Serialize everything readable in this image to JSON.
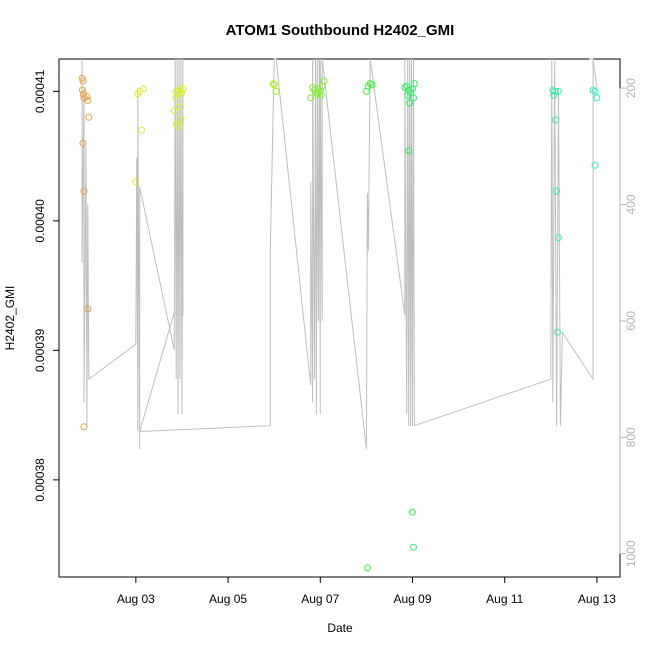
{
  "chart_data": {
    "type": "scatter",
    "title": "ATOM1 Southbound H2402_GMI",
    "xlabel": "Date",
    "ylabel": "H2402_GMI",
    "x_domain": [
      "2016-08-01T08:00",
      "2016-08-13T12:00"
    ],
    "y_domain": [
      0.0003725,
      0.0004125
    ],
    "y2_domain": [
      1040,
      150
    ],
    "x_ticks": [
      {
        "date": "2016-08-03",
        "label": "Aug 03"
      },
      {
        "date": "2016-08-05",
        "label": "Aug 05"
      },
      {
        "date": "2016-08-07",
        "label": "Aug 07"
      },
      {
        "date": "2016-08-09",
        "label": "Aug 09"
      },
      {
        "date": "2016-08-11",
        "label": "Aug 11"
      },
      {
        "date": "2016-08-13",
        "label": "Aug 13"
      }
    ],
    "y_ticks": [
      {
        "value": 0.00038,
        "label": "0.00038"
      },
      {
        "value": 0.00039,
        "label": "0.00039"
      },
      {
        "value": 0.0004,
        "label": "0.00040"
      },
      {
        "value": 0.00041,
        "label": "0.00041"
      }
    ],
    "y2_ticks": [
      {
        "value": 200,
        "label": "200"
      },
      {
        "value": 400,
        "label": "400"
      },
      {
        "value": 600,
        "label": "600"
      },
      {
        "value": 800,
        "label": "800"
      },
      {
        "value": 1000,
        "label": "1000"
      }
    ],
    "points": [
      {
        "x": "2016-08-01T20:00",
        "y": 0.000411,
        "color": "#e6a040"
      },
      {
        "x": "2016-08-01T20:30",
        "y": 0.0004108,
        "color": "#e6a040"
      },
      {
        "x": "2016-08-01T20:15",
        "y": 0.0004101,
        "color": "#e6a040"
      },
      {
        "x": "2016-08-01T20:45",
        "y": 0.0004098,
        "color": "#e6a040"
      },
      {
        "x": "2016-08-01T21:00",
        "y": 0.0004095,
        "color": "#e6a040"
      },
      {
        "x": "2016-08-01T23:00",
        "y": 0.0004093,
        "color": "#e6a040"
      },
      {
        "x": "2016-08-01T22:30",
        "y": 0.0004096,
        "color": "#e6a040"
      },
      {
        "x": "2016-08-01T23:30",
        "y": 0.000408,
        "color": "#e6a040"
      },
      {
        "x": "2016-08-01T20:30",
        "y": 0.000406,
        "color": "#e6a040"
      },
      {
        "x": "2016-08-01T21:00",
        "y": 0.0004023,
        "color": "#e6a040"
      },
      {
        "x": "2016-08-01T23:00",
        "y": 0.0003932,
        "color": "#e6a040"
      },
      {
        "x": "2016-08-01T21:00",
        "y": 0.0003841,
        "color": "#e6a040"
      },
      {
        "x": "2016-08-03T02:00",
        "y": 0.00041,
        "color": "#e6e633"
      },
      {
        "x": "2016-08-03T04:00",
        "y": 0.0004102,
        "color": "#e6e633"
      },
      {
        "x": "2016-08-03T01:00",
        "y": 0.0004098,
        "color": "#e6e633"
      },
      {
        "x": "2016-08-03T03:00",
        "y": 0.000407,
        "color": "#e6e633"
      },
      {
        "x": "2016-08-03T00:00",
        "y": 0.000403,
        "color": "#e6e633"
      },
      {
        "x": "2016-08-03T21:00",
        "y": 0.00041,
        "color": "#d8f020"
      },
      {
        "x": "2016-08-03T22:00",
        "y": 0.0004098,
        "color": "#d8f020"
      },
      {
        "x": "2016-08-03T23:00",
        "y": 0.0004101,
        "color": "#d8f020"
      },
      {
        "x": "2016-08-04T00:00",
        "y": 0.0004099,
        "color": "#d8f020"
      },
      {
        "x": "2016-08-03T21:00",
        "y": 0.0004095,
        "color": "#d8f020"
      },
      {
        "x": "2016-08-03T22:30",
        "y": 0.0004088,
        "color": "#d8f020"
      },
      {
        "x": "2016-08-03T20:00",
        "y": 0.0004085,
        "color": "#d8f020"
      },
      {
        "x": "2016-08-03T23:30",
        "y": 0.0004078,
        "color": "#d8f020"
      },
      {
        "x": "2016-08-03T21:00",
        "y": 0.0004075,
        "color": "#d8f020"
      },
      {
        "x": "2016-08-03T22:00",
        "y": 0.0004073,
        "color": "#d8f020"
      },
      {
        "x": "2016-08-04T00:30",
        "y": 0.0004102,
        "color": "#d8f020"
      },
      {
        "x": "2016-08-05T23:30",
        "y": 0.0004106,
        "color": "#a6f020"
      },
      {
        "x": "2016-08-06T00:00",
        "y": 0.0004105,
        "color": "#a6f020"
      },
      {
        "x": "2016-08-06T01:00",
        "y": 0.00041,
        "color": "#a6f020"
      },
      {
        "x": "2016-08-06T20:00",
        "y": 0.0004103,
        "color": "#86f030"
      },
      {
        "x": "2016-08-06T21:00",
        "y": 0.0004101,
        "color": "#86f030"
      },
      {
        "x": "2016-08-06T22:00",
        "y": 0.0004099,
        "color": "#86f030"
      },
      {
        "x": "2016-08-06T23:00",
        "y": 0.0004102,
        "color": "#86f030"
      },
      {
        "x": "2016-08-07T00:00",
        "y": 0.00041,
        "color": "#86f030"
      },
      {
        "x": "2016-08-07T01:00",
        "y": 0.0004104,
        "color": "#86f030"
      },
      {
        "x": "2016-08-06T22:30",
        "y": 0.0004098,
        "color": "#86f030"
      },
      {
        "x": "2016-08-07T00:30",
        "y": 0.0004097,
        "color": "#86f030"
      },
      {
        "x": "2016-08-06T19:00",
        "y": 0.0004095,
        "color": "#86f030"
      },
      {
        "x": "2016-08-07T02:00",
        "y": 0.0004108,
        "color": "#86f030"
      },
      {
        "x": "2016-08-08T00:00",
        "y": 0.00041,
        "color": "#40f040"
      },
      {
        "x": "2016-08-08T01:00",
        "y": 0.0004104,
        "color": "#40f040"
      },
      {
        "x": "2016-08-08T02:00",
        "y": 0.0004106,
        "color": "#40f040"
      },
      {
        "x": "2016-08-08T03:00",
        "y": 0.0004105,
        "color": "#40f040"
      },
      {
        "x": "2016-08-08T00:30",
        "y": 0.0003732,
        "color": "#40f040"
      },
      {
        "x": "2016-08-08T20:00",
        "y": 0.0004103,
        "color": "#30f060"
      },
      {
        "x": "2016-08-08T21:00",
        "y": 0.0004104,
        "color": "#30f060"
      },
      {
        "x": "2016-08-08T22:00",
        "y": 0.0004101,
        "color": "#30f060"
      },
      {
        "x": "2016-08-08T23:00",
        "y": 0.0004099,
        "color": "#30f060"
      },
      {
        "x": "2016-08-09T00:00",
        "y": 0.0004102,
        "color": "#30f060"
      },
      {
        "x": "2016-08-09T01:00",
        "y": 0.0004106,
        "color": "#30f060"
      },
      {
        "x": "2016-08-08T21:30",
        "y": 0.0004097,
        "color": "#30f060"
      },
      {
        "x": "2016-08-09T00:30",
        "y": 0.0004095,
        "color": "#30f060"
      },
      {
        "x": "2016-08-08T22:30",
        "y": 0.0004091,
        "color": "#30f060"
      },
      {
        "x": "2016-08-08T22:00",
        "y": 0.0004054,
        "color": "#30f060"
      },
      {
        "x": "2016-08-09T00:00",
        "y": 0.0003775,
        "color": "#30f060"
      },
      {
        "x": "2016-08-09T00:30",
        "y": 0.0003748,
        "color": "#30f060"
      },
      {
        "x": "2016-08-12T01:00",
        "y": 0.0004101,
        "color": "#30f0a8"
      },
      {
        "x": "2016-08-12T02:00",
        "y": 0.00041,
        "color": "#30f0a8"
      },
      {
        "x": "2016-08-12T04:00",
        "y": 0.00041,
        "color": "#30f0a8"
      },
      {
        "x": "2016-08-12T01:30",
        "y": 0.0004097,
        "color": "#30f0a8"
      },
      {
        "x": "2016-08-12T02:30",
        "y": 0.0004078,
        "color": "#30f0a8"
      },
      {
        "x": "2016-08-12T03:00",
        "y": 0.0004023,
        "color": "#30f0a8"
      },
      {
        "x": "2016-08-12T04:00",
        "y": 0.0003987,
        "color": "#30f0a8"
      },
      {
        "x": "2016-08-12T03:30",
        "y": 0.0003914,
        "color": "#30f0a8"
      },
      {
        "x": "2016-08-12T22:00",
        "y": 0.0004101,
        "color": "#30f0c0"
      },
      {
        "x": "2016-08-12T23:00",
        "y": 0.00041,
        "color": "#30f0c0"
      },
      {
        "x": "2016-08-13T00:00",
        "y": 0.0004095,
        "color": "#30f0c0"
      },
      {
        "x": "2016-08-12T23:00",
        "y": 0.0004043,
        "color": "#30f0c0"
      }
    ],
    "line_series": {
      "color": "#bebebe",
      "points": [
        [
          "2016-08-01T20:00",
          150
        ],
        [
          "2016-08-01T20:00",
          500
        ],
        [
          "2016-08-01T21:00",
          200
        ],
        [
          "2016-08-01T21:00",
          740
        ],
        [
          "2016-08-01T22:00",
          300
        ],
        [
          "2016-08-01T22:30",
          780
        ],
        [
          "2016-08-01T23:00",
          400
        ],
        [
          "2016-08-01T23:30",
          700
        ],
        [
          "2016-08-03T00:00",
          640
        ],
        [
          "2016-08-03T00:30",
          320
        ],
        [
          "2016-08-03T01:00",
          790
        ],
        [
          "2016-08-03T01:00",
          200
        ],
        [
          "2016-08-03T02:00",
          820
        ],
        [
          "2016-08-03T02:00",
          370
        ],
        [
          "2016-08-03T20:00",
          650
        ],
        [
          "2016-08-03T20:30",
          150
        ],
        [
          "2016-08-03T21:00",
          700
        ],
        [
          "2016-08-03T21:30",
          150
        ],
        [
          "2016-08-03T22:00",
          760
        ],
        [
          "2016-08-03T22:30",
          150
        ],
        [
          "2016-08-03T23:00",
          700
        ],
        [
          "2016-08-03T23:30",
          150
        ],
        [
          "2016-08-04T00:00",
          760
        ],
        [
          "2016-08-04T00:30",
          150
        ],
        [
          "2016-08-04T00:30",
          590
        ],
        [
          "2016-08-03T20:00",
          585
        ],
        [
          "2016-08-03T02:00",
          790
        ],
        [
          "2016-08-05T22:00",
          780
        ],
        [
          "2016-08-05T22:00",
          480
        ],
        [
          "2016-08-06T00:00",
          150
        ],
        [
          "2016-08-06T01:00",
          150
        ],
        [
          "2016-08-06T19:00",
          710
        ],
        [
          "2016-08-06T19:00",
          360
        ],
        [
          "2016-08-06T20:00",
          740
        ],
        [
          "2016-08-06T20:00",
          150
        ],
        [
          "2016-08-06T21:00",
          700
        ],
        [
          "2016-08-06T21:30",
          150
        ],
        [
          "2016-08-06T22:00",
          760
        ],
        [
          "2016-08-06T22:30",
          150
        ],
        [
          "2016-08-06T23:00",
          600
        ],
        [
          "2016-08-06T23:30",
          150
        ],
        [
          "2016-08-07T00:00",
          760
        ],
        [
          "2016-08-07T00:00",
          150
        ],
        [
          "2016-08-07T01:00",
          600
        ],
        [
          "2016-08-07T01:00",
          150
        ],
        [
          "2016-08-08T00:00",
          820
        ],
        [
          "2016-08-08T00:30",
          380
        ],
        [
          "2016-08-08T01:00",
          480
        ],
        [
          "2016-08-08T02:00",
          150
        ],
        [
          "2016-08-08T20:00",
          590
        ],
        [
          "2016-08-08T20:00",
          150
        ],
        [
          "2016-08-08T21:00",
          760
        ],
        [
          "2016-08-08T21:30",
          150
        ],
        [
          "2016-08-08T22:00",
          780
        ],
        [
          "2016-08-08T22:30",
          150
        ],
        [
          "2016-08-08T23:00",
          780
        ],
        [
          "2016-08-08T23:30",
          150
        ],
        [
          "2016-08-09T00:00",
          780
        ],
        [
          "2016-08-09T00:30",
          150
        ],
        [
          "2016-08-09T01:00",
          780
        ],
        [
          "2016-08-12T00:00",
          700
        ],
        [
          "2016-08-12T00:30",
          150
        ],
        [
          "2016-08-12T01:00",
          740
        ],
        [
          "2016-08-12T02:00",
          150
        ],
        [
          "2016-08-12T03:00",
          780
        ],
        [
          "2016-08-12T04:00",
          200
        ],
        [
          "2016-08-12T05:00",
          780
        ],
        [
          "2016-08-12T06:00",
          620
        ],
        [
          "2016-08-12T22:00",
          700
        ],
        [
          "2016-08-12T22:00",
          150
        ],
        [
          "2016-08-13T00:00",
          200
        ],
        [
          "2016-08-12T22:00",
          150
        ],
        [
          "2016-08-12T20:00",
          150
        ]
      ]
    }
  }
}
